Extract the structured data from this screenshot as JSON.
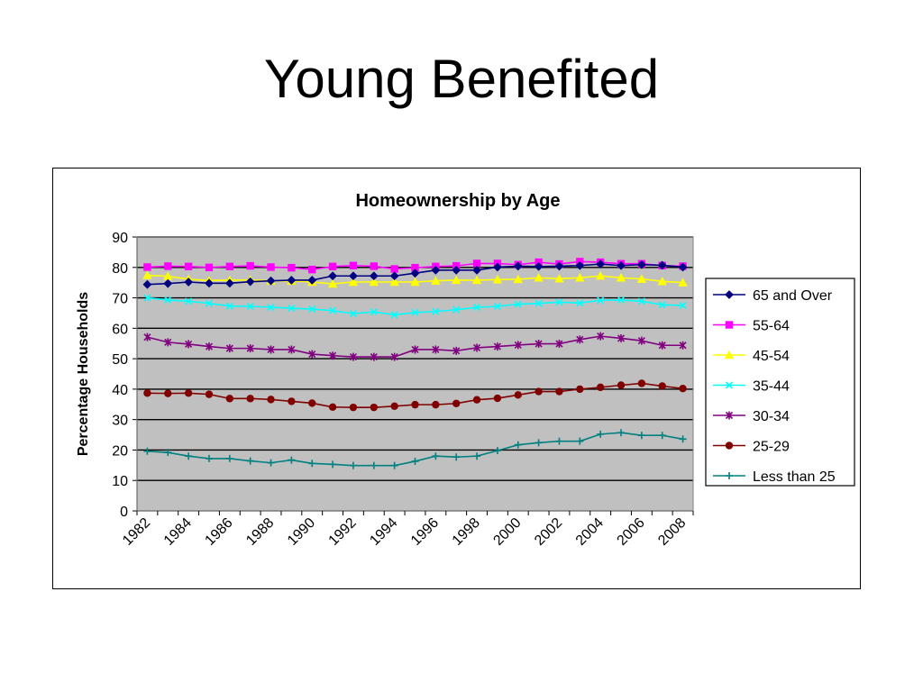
{
  "slide": {
    "title": "Young Benefited"
  },
  "chart_data": {
    "type": "line",
    "title": "Homeownership by Age",
    "xlabel": "",
    "ylabel": "Percentage Households",
    "ylim": [
      0,
      90
    ],
    "yticks": [
      0,
      10,
      20,
      30,
      40,
      50,
      60,
      70,
      80,
      90
    ],
    "x_tick_labels": [
      "1982",
      "1984",
      "1986",
      "1988",
      "1990",
      "1992",
      "1994",
      "1996",
      "1998",
      "2000",
      "2002",
      "2004",
      "2006",
      "2008"
    ],
    "x": [
      "1982",
      "1983",
      "1984",
      "1985",
      "1986",
      "1987",
      "1988",
      "1989",
      "1990",
      "1991",
      "1992",
      "1993",
      "1994",
      "1995",
      "1996",
      "1997",
      "1998",
      "1999",
      "2000",
      "2001",
      "2002",
      "2003",
      "2004",
      "2005",
      "2006",
      "2007",
      "2008"
    ],
    "grid": true,
    "plot_background": "#c0c0c0",
    "legend_position": "right",
    "series": [
      {
        "name": "65 and Over",
        "color": "#000080",
        "marker": "diamond",
        "values": [
          74.4,
          74.7,
          75.2,
          74.8,
          74.8,
          75.3,
          75.6,
          75.8,
          75.8,
          77.2,
          77.2,
          77.2,
          77.2,
          78.1,
          79.1,
          79.1,
          79.1,
          80.1,
          80.4,
          80.3,
          80.4,
          80.6,
          81.1,
          80.6,
          80.9,
          80.7,
          80.1
        ]
      },
      {
        "name": "55-64",
        "color": "#ff00ff",
        "marker": "square",
        "values": [
          80.1,
          80.4,
          80.3,
          80.0,
          80.3,
          80.5,
          80.1,
          79.9,
          79.3,
          80.3,
          80.6,
          80.4,
          79.5,
          79.9,
          80.3,
          80.5,
          81.3,
          81.3,
          80.9,
          81.7,
          81.1,
          81.9,
          81.7,
          81.2,
          81.2,
          80.6,
          80.4
        ]
      },
      {
        "name": "45-54",
        "color": "#ffff00",
        "marker": "triangle",
        "values": [
          77.4,
          77.1,
          76.1,
          75.7,
          75.8,
          75.9,
          75.6,
          75.5,
          75.2,
          74.6,
          75.2,
          75.2,
          75.2,
          75.2,
          75.6,
          75.8,
          75.8,
          76.0,
          76.1,
          76.6,
          76.3,
          76.6,
          77.2,
          76.6,
          76.2,
          75.4,
          75.0
        ]
      },
      {
        "name": "35-44",
        "color": "#00ffff",
        "marker": "x",
        "values": [
          70.0,
          69.3,
          68.9,
          68.2,
          67.3,
          67.2,
          66.9,
          66.6,
          66.3,
          65.8,
          64.8,
          65.4,
          64.4,
          65.2,
          65.5,
          66.1,
          66.9,
          67.2,
          67.9,
          68.2,
          68.6,
          68.3,
          69.2,
          69.3,
          68.9,
          67.7,
          67.5
        ]
      },
      {
        "name": "30-34",
        "color": "#800080",
        "marker": "star",
        "values": [
          57.1,
          55.4,
          54.8,
          54.0,
          53.4,
          53.4,
          53.0,
          53.0,
          51.5,
          51.0,
          50.6,
          50.6,
          50.6,
          53.0,
          53.0,
          52.6,
          53.6,
          54.0,
          54.5,
          54.9,
          54.9,
          56.3,
          57.4,
          56.7,
          55.9,
          54.4,
          54.4
        ]
      },
      {
        "name": "25-29",
        "color": "#800000",
        "marker": "circle",
        "values": [
          38.7,
          38.6,
          38.7,
          38.3,
          36.9,
          36.9,
          36.6,
          36.0,
          35.4,
          34.1,
          34.0,
          34.0,
          34.4,
          34.9,
          34.9,
          35.3,
          36.5,
          37.0,
          38.1,
          39.2,
          39.2,
          40.0,
          40.6,
          41.3,
          41.9,
          41.0,
          40.2
        ]
      },
      {
        "name": "Less than 25",
        "color": "#008080",
        "marker": "plus",
        "values": [
          19.6,
          19.2,
          18.0,
          17.2,
          17.2,
          16.4,
          15.8,
          16.7,
          15.6,
          15.3,
          14.9,
          14.9,
          14.9,
          16.3,
          18.0,
          17.7,
          18.0,
          19.8,
          21.7,
          22.4,
          22.9,
          22.9,
          25.2,
          25.7,
          24.8,
          24.8,
          23.6
        ]
      }
    ]
  }
}
